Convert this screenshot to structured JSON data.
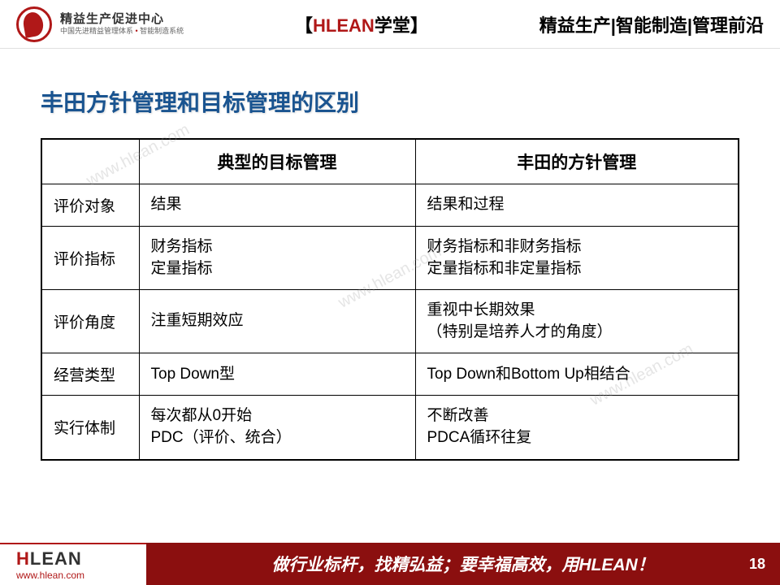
{
  "header": {
    "logo_main": "精益生产促进中心",
    "logo_sub_1": "中国先进精益管理体系",
    "logo_sub_2": "智能制造系统",
    "center_bracket_l": "【",
    "center_red": "HLEAN",
    "center_rest": "学堂",
    "center_bracket_r": "】",
    "right": "精益生产|智能制造|管理前沿"
  },
  "title": "丰田方针管理和目标管理的区别",
  "table": {
    "header_col1": "典型的目标管理",
    "header_col2": "丰田的方针管理",
    "rows": [
      {
        "label": "评价对象",
        "c1": [
          "结果"
        ],
        "c2": [
          "结果和过程"
        ]
      },
      {
        "label": "评价指标",
        "c1": [
          "财务指标",
          "定量指标"
        ],
        "c2": [
          "财务指标和非财务指标",
          "定量指标和非定量指标"
        ]
      },
      {
        "label": "评价角度",
        "c1": [
          "注重短期效应"
        ],
        "c2": [
          "重视中长期效果",
          "（特别是培养人才的角度）"
        ]
      },
      {
        "label": "经营类型",
        "c1": [
          "Top Down型"
        ],
        "c2": [
          "Top Down和Bottom Up相结合"
        ]
      },
      {
        "label": "实行体制",
        "c1": [
          "每次都从0开始",
          "PDC（评价、统合）"
        ],
        "c2": [
          "不断改善",
          "PDCA循环往复"
        ]
      }
    ]
  },
  "footer": {
    "logo_h": "H",
    "logo_lean": "LEAN",
    "url": "www.hlean.com",
    "slogan": "做行业标杆，找精弘益；要幸福高效，用HLEAN！",
    "page": "18"
  },
  "watermark": "www.hlean.com"
}
